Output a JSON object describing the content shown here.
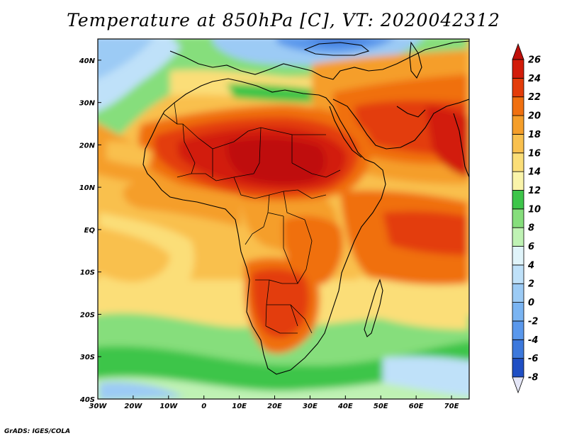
{
  "title": "Temperature at 850hPa [C], VT: 2020042312",
  "credit": "GrADS: IGES/COLA",
  "map": {
    "lon_range": [
      -30,
      75
    ],
    "lat_range": [
      -40,
      45
    ],
    "lon_ticks": [
      {
        "lon": -30,
        "label": "30W"
      },
      {
        "lon": -20,
        "label": "20W"
      },
      {
        "lon": -10,
        "label": "10W"
      },
      {
        "lon": 0,
        "label": "0"
      },
      {
        "lon": 10,
        "label": "10E"
      },
      {
        "lon": 20,
        "label": "20E"
      },
      {
        "lon": 30,
        "label": "30E"
      },
      {
        "lon": 40,
        "label": "40E"
      },
      {
        "lon": 50,
        "label": "50E"
      },
      {
        "lon": 60,
        "label": "60E"
      },
      {
        "lon": 70,
        "label": "70E"
      }
    ],
    "lat_ticks": [
      {
        "lat": 40,
        "label": "40N"
      },
      {
        "lat": 30,
        "label": "30N"
      },
      {
        "lat": 20,
        "label": "20N"
      },
      {
        "lat": 10,
        "label": "10N"
      },
      {
        "lat": 0,
        "label": "EQ"
      },
      {
        "lat": -10,
        "label": "10S"
      },
      {
        "lat": -20,
        "label": "20S"
      },
      {
        "lat": -30,
        "label": "30S"
      },
      {
        "lat": -40,
        "label": "40S"
      }
    ]
  },
  "colorbar": {
    "levels": [
      "-8",
      "-6",
      "-4",
      "-2",
      "0",
      "2",
      "4",
      "6",
      "8",
      "10",
      "12",
      "14",
      "16",
      "18",
      "20",
      "22",
      "24",
      "26"
    ],
    "colors": [
      "#0d1d78",
      "#1f4fc4",
      "#3c78dc",
      "#5a98ec",
      "#7ab4f2",
      "#9ccbf5",
      "#bfe1f9",
      "#e0f4fa",
      "#bff2b4",
      "#86de7c",
      "#3dc54a",
      "#faf4aa",
      "#fbde78",
      "#f9c04e",
      "#f59e2a",
      "#f07010",
      "#e33c0a",
      "#d21c0a",
      "#bf0f0a"
    ]
  }
}
